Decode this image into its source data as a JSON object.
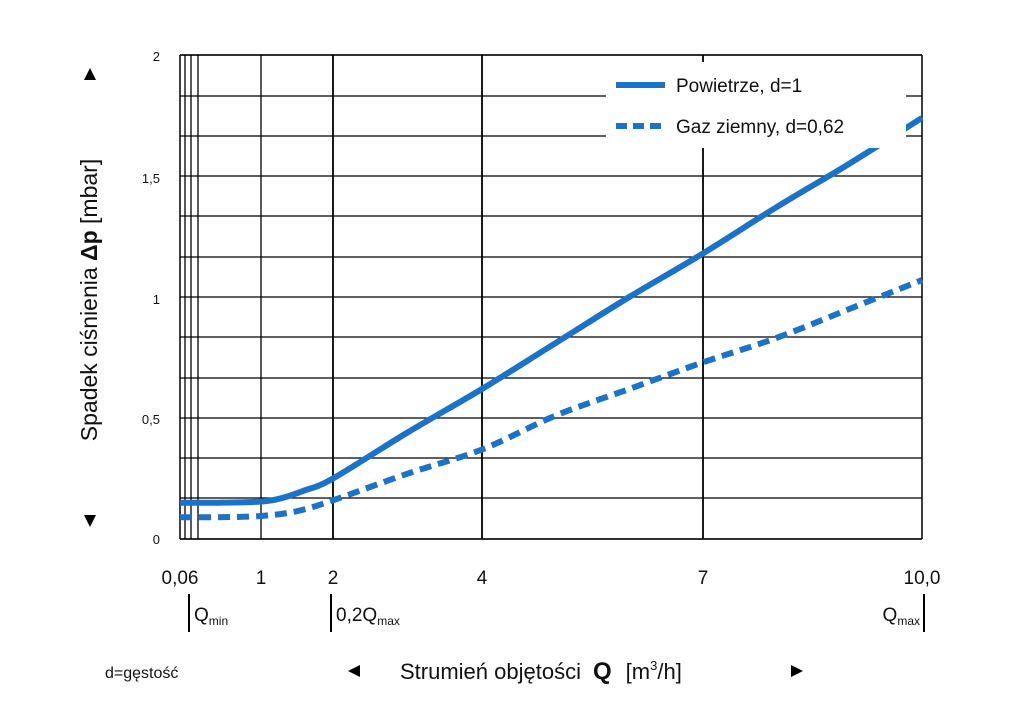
{
  "chart_data": {
    "type": "line",
    "xlabel": {
      "prefix": "Strumień objętości",
      "symbol": "Q",
      "unit_open": "[m",
      "unit_sup": "3",
      "unit_close": "/h]"
    },
    "ylabel": {
      "prefix": "Spadek ciśnienia",
      "symbol": "Δp",
      "unit": "[mbar]"
    },
    "xlim": [
      0.06,
      10.0
    ],
    "ylim": [
      0,
      2
    ],
    "x_ticks": [
      0.06,
      1,
      2,
      4,
      7,
      10.0
    ],
    "x_tick_labels": [
      "0,06",
      "1",
      "2",
      "4",
      "7",
      "10,0"
    ],
    "y_ticks": [
      0,
      0.5,
      1,
      1.5,
      2
    ],
    "y_tick_labels": [
      "0",
      "0,5",
      "1",
      "1,5",
      "2"
    ],
    "grid": true,
    "legend_position": "top-right",
    "series": [
      {
        "name": "Powietrze, d=1",
        "style": "solid",
        "color": "#1a73c8",
        "x": [
          0.06,
          0.5,
          1,
          1.3,
          1.6,
          2,
          3,
          4,
          5,
          6,
          7,
          8,
          9,
          10
        ],
        "y": [
          0.15,
          0.15,
          0.155,
          0.17,
          0.2,
          0.25,
          0.44,
          0.62,
          0.81,
          1.0,
          1.18,
          1.37,
          1.55,
          1.74
        ]
      },
      {
        "name": "Gaz ziemny, d=0,62",
        "style": "dashed",
        "color": "#1a73c8",
        "x": [
          0.06,
          0.5,
          1,
          1.5,
          2,
          3,
          4,
          5,
          6,
          7,
          8,
          9,
          10
        ],
        "y": [
          0.09,
          0.09,
          0.095,
          0.115,
          0.16,
          0.27,
          0.37,
          0.51,
          0.62,
          0.73,
          0.83,
          0.95,
          1.07
        ]
      }
    ],
    "annotations": {
      "qmin": {
        "main": "Q",
        "sub": "min",
        "x": 0.06
      },
      "q02max": {
        "main": "0,2Q",
        "sub": "max",
        "x": 2
      },
      "qmax": {
        "main": "Q",
        "sub": "max",
        "x": 10.0
      },
      "density_note": "d=gęstość"
    }
  },
  "colors": {
    "line": "#1a73c8",
    "grid": "#000000"
  }
}
